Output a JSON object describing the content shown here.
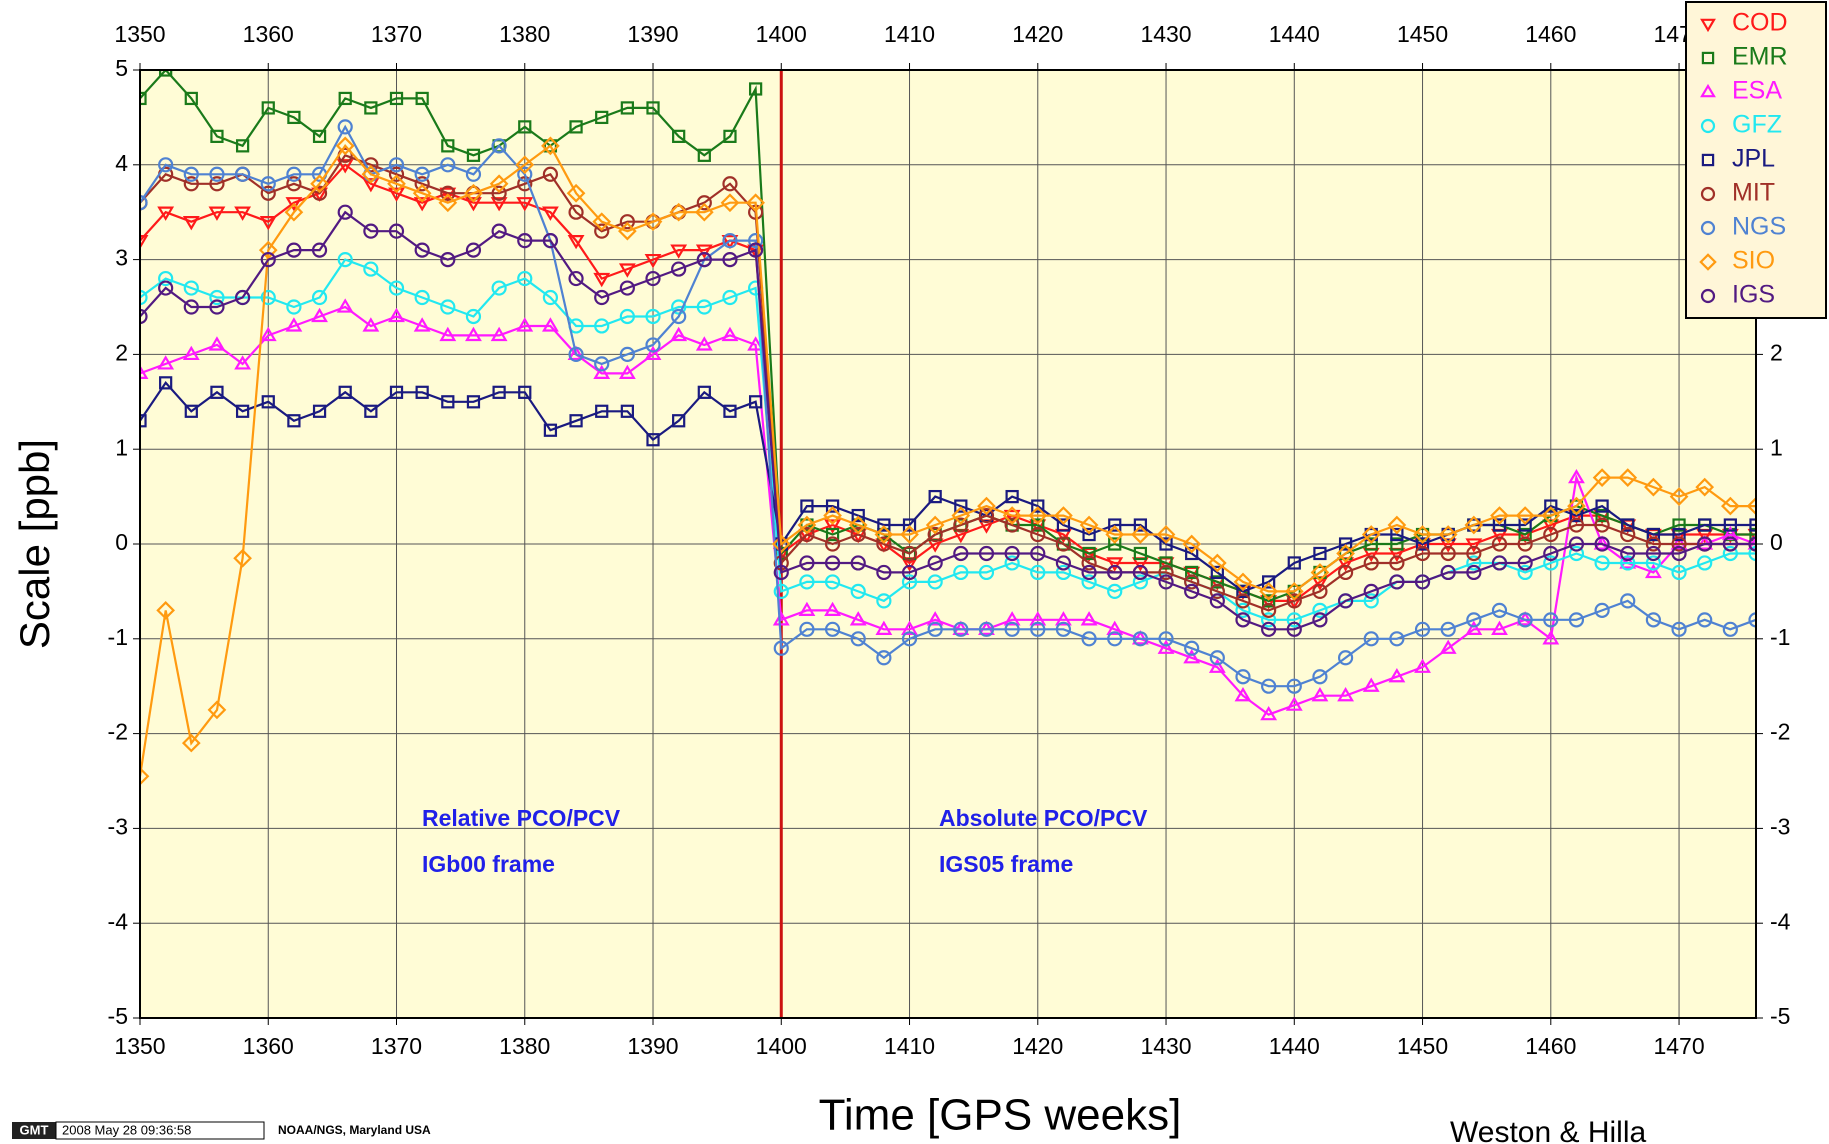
{
  "chart_data": {
    "type": "line",
    "xlabel": "Time [GPS weeks]",
    "ylabel": "Scale [ppb]",
    "x": [
      1350,
      1352,
      1354,
      1356,
      1358,
      1360,
      1362,
      1364,
      1366,
      1368,
      1370,
      1372,
      1374,
      1376,
      1378,
      1380,
      1382,
      1384,
      1386,
      1388,
      1390,
      1392,
      1394,
      1396,
      1398,
      1400,
      1402,
      1404,
      1406,
      1408,
      1410,
      1412,
      1414,
      1416,
      1418,
      1420,
      1422,
      1424,
      1426,
      1428,
      1430,
      1432,
      1434,
      1436,
      1438,
      1440,
      1442,
      1444,
      1446,
      1448,
      1450,
      1452,
      1454,
      1456,
      1458,
      1460,
      1462,
      1464,
      1466,
      1468,
      1470,
      1472,
      1474,
      1476
    ],
    "xlim": [
      1350,
      1476
    ],
    "xticks": [
      1350,
      1360,
      1370,
      1380,
      1390,
      1400,
      1410,
      1420,
      1430,
      1440,
      1450,
      1460,
      1470
    ],
    "ylim": [
      -5,
      5
    ],
    "yticks": [
      -5,
      -4,
      -3,
      -2,
      -1,
      0,
      1,
      2,
      3,
      4,
      5
    ],
    "grid": true,
    "legend": "upper right",
    "plot_background": "#fffcd6",
    "reference_line": {
      "x": 1400,
      "color": "#cc1111"
    },
    "series": [
      {
        "name": "COD",
        "color": "#ff1a1a",
        "marker": "triangle-down",
        "values": [
          3.2,
          3.5,
          3.4,
          3.5,
          3.5,
          3.4,
          3.6,
          3.7,
          4.0,
          3.8,
          3.7,
          3.6,
          3.7,
          3.6,
          3.6,
          3.6,
          3.5,
          3.2,
          2.8,
          2.9,
          3.0,
          3.1,
          3.1,
          3.2,
          3.1,
          -0.1,
          0.1,
          0.2,
          0.1,
          0.0,
          -0.2,
          0.0,
          0.1,
          0.2,
          0.3,
          0.2,
          0.1,
          -0.1,
          -0.2,
          -0.2,
          -0.2,
          -0.3,
          -0.4,
          -0.5,
          -0.6,
          -0.6,
          -0.4,
          -0.2,
          -0.1,
          -0.1,
          0.0,
          0.0,
          0.0,
          0.1,
          0.1,
          0.2,
          0.3,
          0.3,
          0.2,
          0.1,
          0.1,
          0.1,
          0.1,
          0.1
        ]
      },
      {
        "name": "EMR",
        "color": "#1a7a1a",
        "marker": "square",
        "values": [
          4.7,
          5.0,
          4.7,
          4.3,
          4.2,
          4.6,
          4.5,
          4.3,
          4.7,
          4.6,
          4.7,
          4.7,
          4.2,
          4.1,
          4.2,
          4.4,
          4.2,
          4.4,
          4.5,
          4.6,
          4.6,
          4.3,
          4.1,
          4.3,
          4.8,
          -0.1,
          0.2,
          0.1,
          0.2,
          0.1,
          -0.1,
          0.1,
          0.2,
          0.3,
          0.2,
          0.2,
          0.0,
          -0.1,
          0.0,
          -0.1,
          -0.2,
          -0.3,
          -0.4,
          -0.5,
          -0.6,
          -0.5,
          -0.3,
          -0.1,
          0.0,
          0.0,
          0.1,
          0.1,
          0.2,
          0.2,
          0.1,
          0.3,
          0.4,
          0.3,
          0.2,
          0.1,
          0.2,
          0.2,
          0.1,
          0.1
        ]
      },
      {
        "name": "ESA",
        "color": "#ff1aff",
        "marker": "triangle-up",
        "values": [
          1.8,
          1.9,
          2.0,
          2.1,
          1.9,
          2.2,
          2.3,
          2.4,
          2.5,
          2.3,
          2.4,
          2.3,
          2.2,
          2.2,
          2.2,
          2.3,
          2.3,
          2.0,
          1.8,
          1.8,
          2.0,
          2.2,
          2.1,
          2.2,
          2.1,
          -0.8,
          -0.7,
          -0.7,
          -0.8,
          -0.9,
          -0.9,
          -0.8,
          -0.9,
          -0.9,
          -0.8,
          -0.8,
          -0.8,
          -0.8,
          -0.9,
          -1.0,
          -1.1,
          -1.2,
          -1.3,
          -1.6,
          -1.8,
          -1.7,
          -1.6,
          -1.6,
          -1.5,
          -1.4,
          -1.3,
          -1.1,
          -0.9,
          -0.9,
          -0.8,
          -1.0,
          0.7,
          0.0,
          -0.2,
          -0.3,
          0.0,
          0.0,
          0.1,
          0.0
        ]
      },
      {
        "name": "GFZ",
        "color": "#22e8f0",
        "marker": "circle",
        "values": [
          2.6,
          2.8,
          2.7,
          2.6,
          2.6,
          2.6,
          2.5,
          2.6,
          3.0,
          2.9,
          2.7,
          2.6,
          2.5,
          2.4,
          2.7,
          2.8,
          2.6,
          2.3,
          2.3,
          2.4,
          2.4,
          2.5,
          2.5,
          2.6,
          2.7,
          -0.5,
          -0.4,
          -0.4,
          -0.5,
          -0.6,
          -0.4,
          -0.4,
          -0.3,
          -0.3,
          -0.2,
          -0.3,
          -0.3,
          -0.4,
          -0.5,
          -0.4,
          -0.3,
          -0.4,
          -0.5,
          -0.7,
          -0.8,
          -0.8,
          -0.7,
          -0.6,
          -0.6,
          -0.4,
          -0.4,
          -0.3,
          -0.2,
          -0.2,
          -0.3,
          -0.2,
          -0.1,
          -0.2,
          -0.2,
          -0.2,
          -0.3,
          -0.2,
          -0.1,
          -0.1
        ]
      },
      {
        "name": "JPL",
        "color": "#1a1a80",
        "marker": "square",
        "values": [
          1.3,
          1.7,
          1.4,
          1.6,
          1.4,
          1.5,
          1.3,
          1.4,
          1.6,
          1.4,
          1.6,
          1.6,
          1.5,
          1.5,
          1.6,
          1.6,
          1.2,
          1.3,
          1.4,
          1.4,
          1.1,
          1.3,
          1.6,
          1.4,
          1.5,
          0.0,
          0.4,
          0.4,
          0.3,
          0.2,
          0.2,
          0.5,
          0.4,
          0.3,
          0.5,
          0.4,
          0.2,
          0.1,
          0.2,
          0.2,
          0.0,
          -0.1,
          -0.3,
          -0.5,
          -0.4,
          -0.2,
          -0.1,
          0.0,
          0.1,
          0.1,
          0.0,
          0.1,
          0.2,
          0.2,
          0.2,
          0.4,
          0.3,
          0.4,
          0.2,
          0.1,
          0.1,
          0.2,
          0.2,
          0.2
        ]
      },
      {
        "name": "MIT",
        "color": "#a03028",
        "marker": "circle",
        "values": [
          3.6,
          3.9,
          3.8,
          3.8,
          3.9,
          3.7,
          3.8,
          3.7,
          4.1,
          4.0,
          3.9,
          3.8,
          3.7,
          3.7,
          3.7,
          3.8,
          3.9,
          3.5,
          3.3,
          3.4,
          3.4,
          3.5,
          3.6,
          3.8,
          3.5,
          -0.2,
          0.1,
          0.0,
          0.1,
          0.0,
          -0.1,
          0.1,
          0.2,
          0.3,
          0.2,
          0.1,
          0.0,
          -0.2,
          -0.3,
          -0.3,
          -0.3,
          -0.4,
          -0.5,
          -0.6,
          -0.7,
          -0.6,
          -0.5,
          -0.3,
          -0.2,
          -0.2,
          -0.1,
          -0.1,
          -0.1,
          0.0,
          0.0,
          0.1,
          0.2,
          0.2,
          0.1,
          0.0,
          0.0,
          0.0,
          0.0,
          0.0
        ]
      },
      {
        "name": "NGS",
        "color": "#4f82d2",
        "marker": "circle",
        "values": [
          3.6,
          4.0,
          3.9,
          3.9,
          3.9,
          3.8,
          3.9,
          3.9,
          4.4,
          3.9,
          4.0,
          3.9,
          4.0,
          3.9,
          4.2,
          3.9,
          3.2,
          2.0,
          1.9,
          2.0,
          2.1,
          2.4,
          3.0,
          3.2,
          3.2,
          -1.1,
          -0.9,
          -0.9,
          -1.0,
          -1.2,
          -1.0,
          -0.9,
          -0.9,
          -0.9,
          -0.9,
          -0.9,
          -0.9,
          -1.0,
          -1.0,
          -1.0,
          -1.0,
          -1.1,
          -1.2,
          -1.4,
          -1.5,
          -1.5,
          -1.4,
          -1.2,
          -1.0,
          -1.0,
          -0.9,
          -0.9,
          -0.8,
          -0.7,
          -0.8,
          -0.8,
          -0.8,
          -0.7,
          -0.6,
          -0.8,
          -0.9,
          -0.8,
          -0.9,
          -0.8
        ]
      },
      {
        "name": "SIO",
        "color": "#ff9a10",
        "marker": "diamond",
        "values": [
          -2.45,
          -0.7,
          -2.1,
          -1.75,
          -0.15,
          3.1,
          3.5,
          3.8,
          4.2,
          3.9,
          3.8,
          3.7,
          3.6,
          3.7,
          3.8,
          4.0,
          4.2,
          3.7,
          3.4,
          3.3,
          3.4,
          3.5,
          3.5,
          3.6,
          3.6,
          0.0,
          0.2,
          0.3,
          0.2,
          0.1,
          0.1,
          0.2,
          0.3,
          0.4,
          0.3,
          0.3,
          0.3,
          0.2,
          0.1,
          0.1,
          0.1,
          0.0,
          -0.2,
          -0.4,
          -0.5,
          -0.5,
          -0.3,
          -0.1,
          0.1,
          0.2,
          0.1,
          0.1,
          0.2,
          0.3,
          0.3,
          0.3,
          0.4,
          0.7,
          0.7,
          0.6,
          0.5,
          0.6,
          0.4,
          0.4
        ]
      },
      {
        "name": "IGS",
        "color": "#521a82",
        "marker": "circle",
        "values": [
          2.4,
          2.7,
          2.5,
          2.5,
          2.6,
          3.0,
          3.1,
          3.1,
          3.5,
          3.3,
          3.3,
          3.1,
          3.0,
          3.1,
          3.3,
          3.2,
          3.2,
          2.8,
          2.6,
          2.7,
          2.8,
          2.9,
          3.0,
          3.0,
          3.1,
          -0.3,
          -0.2,
          -0.2,
          -0.2,
          -0.3,
          -0.3,
          -0.2,
          -0.1,
          -0.1,
          -0.1,
          -0.1,
          -0.2,
          -0.3,
          -0.3,
          -0.3,
          -0.4,
          -0.5,
          -0.6,
          -0.8,
          -0.9,
          -0.9,
          -0.8,
          -0.6,
          -0.5,
          -0.4,
          -0.4,
          -0.3,
          -0.3,
          -0.2,
          -0.2,
          -0.1,
          0.0,
          0.0,
          -0.1,
          -0.1,
          -0.1,
          0.0,
          0.0,
          0.0
        ]
      }
    ],
    "annotations": [
      "Relative PCO/PCV",
      "IGb00 frame",
      "Absolute PCO/PCV",
      "IGS05 frame"
    ],
    "footer": {
      "logo": "GMT",
      "timestamp": "2008 May 28 09:36:58",
      "source": "NOAA/NGS, Maryland USA",
      "credit": "Weston & Hilla"
    }
  }
}
